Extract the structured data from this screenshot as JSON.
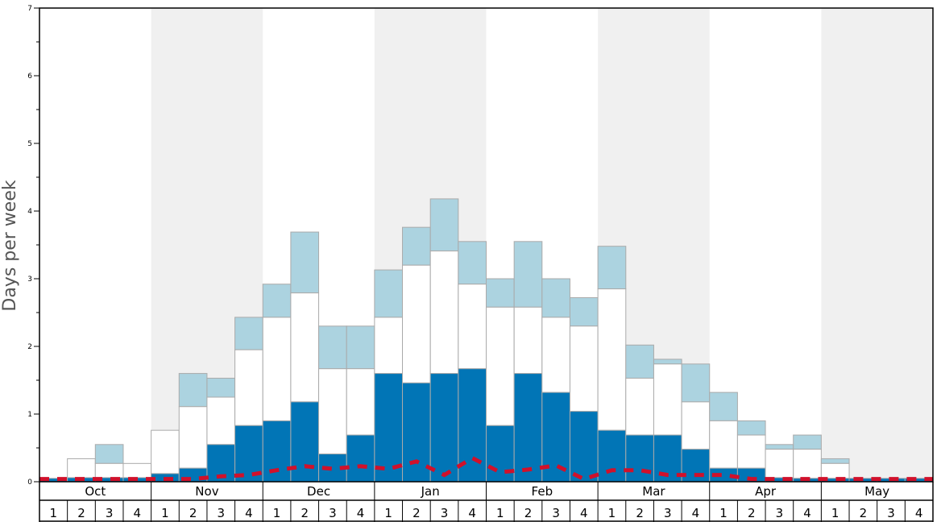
{
  "chart_data": {
    "type": "bar",
    "ylabel": "Days per week",
    "xlabel": "",
    "ylim": [
      0,
      7
    ],
    "yticks": [
      "0",
      "1",
      "2",
      "3",
      "4",
      "5",
      "6",
      "7"
    ],
    "months": [
      "Oct",
      "Nov",
      "Dec",
      "Jan",
      "Feb",
      "Mar",
      "Apr",
      "May"
    ],
    "week_labels": [
      "1",
      "2",
      "3",
      "4"
    ],
    "shaded_months": [
      "Nov",
      "Jan",
      "Mar",
      "May"
    ],
    "colors": {
      "dark": "#0175b6",
      "middle": "#ffffff",
      "light": "#acd3e0",
      "shade": "#f0f0f0",
      "line": "#d0112b",
      "bar_border": "#aaaaaa"
    },
    "stack_top_values": {
      "dark": [
        0.05,
        0.06,
        0.06,
        0.06,
        0.12,
        0.2,
        0.55,
        0.83,
        0.9,
        1.18,
        0.41,
        0.69,
        1.6,
        1.46,
        1.6,
        1.67,
        0.83,
        1.6,
        1.32,
        1.04,
        0.76,
        0.69,
        0.69,
        0.48,
        0.2,
        0.2,
        0.06,
        0.05,
        0.05,
        0.05,
        0.05,
        0.05
      ],
      "middle": [
        0.05,
        0.34,
        0.27,
        0.27,
        0.76,
        1.11,
        1.25,
        1.95,
        2.43,
        2.79,
        1.67,
        1.67,
        2.43,
        3.2,
        3.41,
        2.92,
        2.58,
        2.58,
        2.43,
        2.3,
        2.85,
        1.53,
        1.74,
        1.18,
        0.9,
        0.69,
        0.48,
        0.48,
        0.27,
        0.05,
        0.05,
        0.05
      ],
      "light": [
        0.05,
        0.34,
        0.55,
        0.27,
        0.76,
        1.6,
        1.53,
        2.43,
        2.92,
        3.69,
        2.3,
        2.3,
        3.13,
        3.76,
        4.18,
        3.55,
        3.0,
        3.55,
        3.0,
        2.72,
        3.48,
        2.02,
        1.81,
        1.74,
        1.32,
        0.9,
        0.55,
        0.69,
        0.34,
        0.05,
        0.05,
        0.05
      ]
    },
    "line_values": [
      0.04,
      0.04,
      0.04,
      0.04,
      0.04,
      0.04,
      0.08,
      0.1,
      0.17,
      0.23,
      0.19,
      0.23,
      0.19,
      0.3,
      0.1,
      0.35,
      0.14,
      0.18,
      0.24,
      0.04,
      0.17,
      0.17,
      0.1,
      0.1,
      0.1,
      0.04,
      0.04,
      0.04,
      0.04,
      0.04,
      0.04,
      0.04
    ],
    "grid": false,
    "legend": "none"
  }
}
